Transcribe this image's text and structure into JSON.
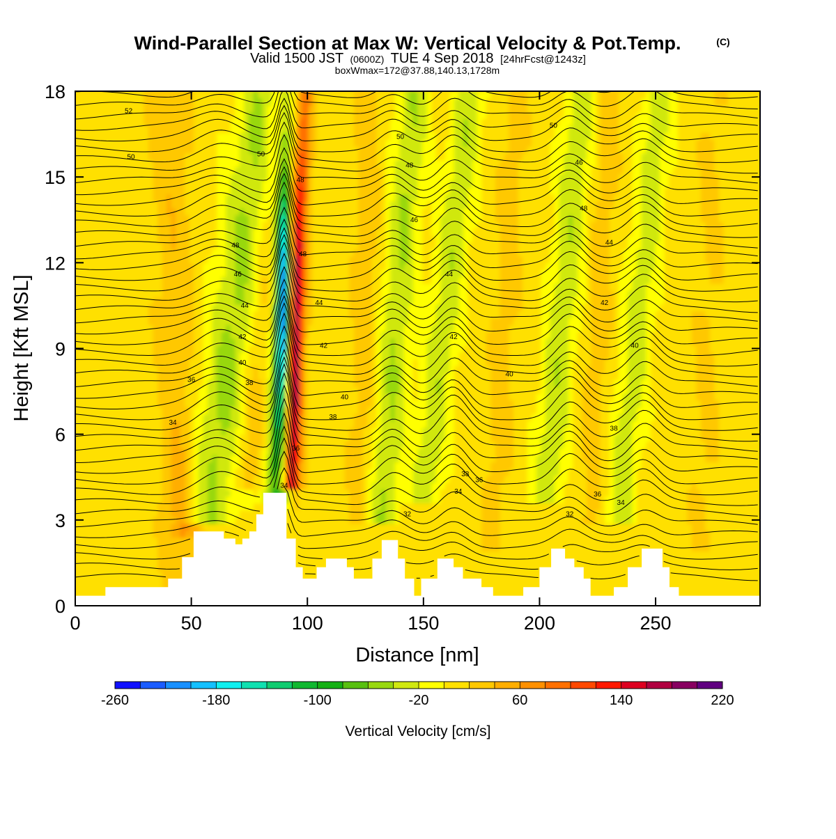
{
  "header": {
    "title": "Wind-Parallel Section at Max W: Vertical Velocity & Pot.Temp.",
    "copyright": "(C)",
    "valid_pre": "Valid 1500 JST",
    "valid_utc": "(0600Z)",
    "valid_post": "TUE 4 Sep 2018",
    "valid_fcst": "[24hrFcst@1243z]",
    "boxwmax": "boxWmax=172@37.88,140.13,1728m"
  },
  "colorbar": {
    "label": "Vertical Velocity [cm/s]",
    "tick_labels": [
      "-260",
      "-180",
      "-100",
      "-20",
      "60",
      "140",
      "220"
    ],
    "colors": [
      "#1010ff",
      "#1a5cff",
      "#1890ff",
      "#14c0ff",
      "#10f0f0",
      "#10e0b0",
      "#10cc70",
      "#10b830",
      "#14b014",
      "#58c010",
      "#98d810",
      "#d0e810",
      "#ffff00",
      "#ffe000",
      "#ffc800",
      "#ffae00",
      "#ff9000",
      "#ff7000",
      "#ff4800",
      "#ff1800",
      "#dd0020",
      "#b00040",
      "#880060",
      "#600080"
    ]
  },
  "chart_data": {
    "type": "heatmap",
    "xlabel": "Distance [nm]",
    "ylabel": "Height [Kft MSL]",
    "xlim": [
      0,
      295
    ],
    "ylim": [
      0,
      18
    ],
    "x_ticks": [
      0,
      50,
      100,
      150,
      200,
      250
    ],
    "y_ticks": [
      0,
      3,
      6,
      9,
      12,
      15,
      18
    ],
    "x_tick_labels": [
      "0",
      "50",
      "100",
      "150",
      "200",
      "250"
    ],
    "y_tick_labels": [
      "0",
      "3",
      "6",
      "9",
      "12",
      "15",
      "18"
    ],
    "colorbar_range_cm_s": [
      -260,
      220
    ],
    "w_max_cm_s": 172,
    "background_w_cm_s": 10,
    "w_features": [
      {
        "x": 90,
        "height": 12,
        "w": -240
      },
      {
        "x": 94,
        "height": 10,
        "w": 172
      },
      {
        "x": 60,
        "height": 11,
        "w": -70
      },
      {
        "x": 135,
        "height": 12,
        "w": -60
      },
      {
        "x": 163,
        "height": 8,
        "w": -55
      },
      {
        "x": 213,
        "height": 8,
        "w": -55
      },
      {
        "x": 245,
        "height": 8,
        "w": -50
      },
      {
        "x": 45,
        "height": 3,
        "w": 45
      }
    ],
    "terrain": [
      [
        0,
        0.35
      ],
      [
        13,
        0.35
      ],
      [
        13,
        0.65
      ],
      [
        40,
        0.65
      ],
      [
        40,
        0.95
      ],
      [
        46,
        0.95
      ],
      [
        46,
        1.7
      ],
      [
        51,
        1.7
      ],
      [
        51,
        2.6
      ],
      [
        64,
        2.6
      ],
      [
        64,
        2.35
      ],
      [
        69,
        2.35
      ],
      [
        69,
        2.15
      ],
      [
        72,
        2.15
      ],
      [
        72,
        2.35
      ],
      [
        75,
        2.35
      ],
      [
        75,
        2.6
      ],
      [
        78,
        2.6
      ],
      [
        78,
        3.2
      ],
      [
        81,
        3.2
      ],
      [
        81,
        3.95
      ],
      [
        91,
        3.95
      ],
      [
        91,
        2.35
      ],
      [
        95,
        2.35
      ],
      [
        95,
        1.35
      ],
      [
        98,
        1.35
      ],
      [
        98,
        0.95
      ],
      [
        104,
        0.95
      ],
      [
        104,
        1.35
      ],
      [
        108,
        1.35
      ],
      [
        108,
        1.65
      ],
      [
        117,
        1.65
      ],
      [
        117,
        1.35
      ],
      [
        120,
        1.35
      ],
      [
        120,
        0.95
      ],
      [
        128,
        0.95
      ],
      [
        128,
        1.65
      ],
      [
        132,
        1.65
      ],
      [
        132,
        2.3
      ],
      [
        139,
        2.3
      ],
      [
        139,
        1.65
      ],
      [
        142,
        1.65
      ],
      [
        142,
        0.95
      ],
      [
        146,
        0.95
      ],
      [
        146,
        0.35
      ],
      [
        149,
        0.35
      ],
      [
        149,
        0.95
      ],
      [
        156,
        0.95
      ],
      [
        156,
        1.65
      ],
      [
        163,
        1.65
      ],
      [
        163,
        1.35
      ],
      [
        167,
        1.35
      ],
      [
        167,
        0.95
      ],
      [
        175,
        0.95
      ],
      [
        175,
        0.65
      ],
      [
        180,
        0.65
      ],
      [
        180,
        0.35
      ],
      [
        193,
        0.35
      ],
      [
        193,
        0.65
      ],
      [
        200,
        0.65
      ],
      [
        200,
        1.35
      ],
      [
        205,
        1.35
      ],
      [
        205,
        2.0
      ],
      [
        211,
        2.0
      ],
      [
        211,
        1.65
      ],
      [
        215,
        1.65
      ],
      [
        215,
        1.35
      ],
      [
        219,
        1.35
      ],
      [
        219,
        0.95
      ],
      [
        222,
        0.95
      ],
      [
        222,
        0.35
      ],
      [
        232,
        0.35
      ],
      [
        232,
        0.65
      ],
      [
        238,
        0.65
      ],
      [
        238,
        1.35
      ],
      [
        244,
        1.35
      ],
      [
        244,
        2.0
      ],
      [
        253,
        2.0
      ],
      [
        253,
        1.35
      ],
      [
        256,
        1.35
      ],
      [
        256,
        0.65
      ],
      [
        260,
        0.65
      ],
      [
        260,
        0.35
      ],
      [
        295,
        0.35
      ]
    ],
    "theta_contours": [
      {
        "label": "34",
        "x": 42,
        "height": 6.4
      },
      {
        "label": "36",
        "x": 50,
        "height": 7.9
      },
      {
        "label": "38",
        "x": 75,
        "height": 7.8
      },
      {
        "label": "40",
        "x": 72,
        "height": 8.5
      },
      {
        "label": "42",
        "x": 72,
        "height": 9.4
      },
      {
        "label": "44",
        "x": 73,
        "height": 10.5
      },
      {
        "label": "46",
        "x": 70,
        "height": 11.6
      },
      {
        "label": "48",
        "x": 69,
        "height": 12.6
      },
      {
        "label": "50",
        "x": 24,
        "height": 15.7
      },
      {
        "label": "52",
        "x": 23,
        "height": 17.3
      },
      {
        "label": "50",
        "x": 80,
        "height": 15.8
      },
      {
        "label": "48",
        "x": 97,
        "height": 14.9
      },
      {
        "label": "48",
        "x": 98,
        "height": 12.3
      },
      {
        "label": "44",
        "x": 105,
        "height": 10.6
      },
      {
        "label": "42",
        "x": 107,
        "height": 9.1
      },
      {
        "label": "40",
        "x": 116,
        "height": 7.3
      },
      {
        "label": "38",
        "x": 111,
        "height": 6.6
      },
      {
        "label": "36",
        "x": 95,
        "height": 5.5
      },
      {
        "label": "34",
        "x": 90,
        "height": 4.2
      },
      {
        "label": "32",
        "x": 143,
        "height": 3.2
      },
      {
        "label": "50",
        "x": 140,
        "height": 16.4
      },
      {
        "label": "48",
        "x": 144,
        "height": 15.4
      },
      {
        "label": "46",
        "x": 146,
        "height": 13.5
      },
      {
        "label": "44",
        "x": 161,
        "height": 11.6
      },
      {
        "label": "42",
        "x": 163,
        "height": 9.4
      },
      {
        "label": "40",
        "x": 187,
        "height": 8.1
      },
      {
        "label": "38",
        "x": 168,
        "height": 4.6
      },
      {
        "label": "36",
        "x": 174,
        "height": 4.4
      },
      {
        "label": "34",
        "x": 165,
        "height": 4.0
      },
      {
        "label": "50",
        "x": 206,
        "height": 16.8
      },
      {
        "label": "46",
        "x": 217,
        "height": 15.5
      },
      {
        "label": "48",
        "x": 219,
        "height": 13.9
      },
      {
        "label": "44",
        "x": 230,
        "height": 12.7
      },
      {
        "label": "42",
        "x": 228,
        "height": 10.6
      },
      {
        "label": "40",
        "x": 241,
        "height": 9.1
      },
      {
        "label": "38",
        "x": 232,
        "height": 6.2
      },
      {
        "label": "36",
        "x": 225,
        "height": 3.9
      },
      {
        "label": "34",
        "x": 235,
        "height": 3.6
      },
      {
        "label": "32",
        "x": 213,
        "height": 3.2
      }
    ]
  }
}
